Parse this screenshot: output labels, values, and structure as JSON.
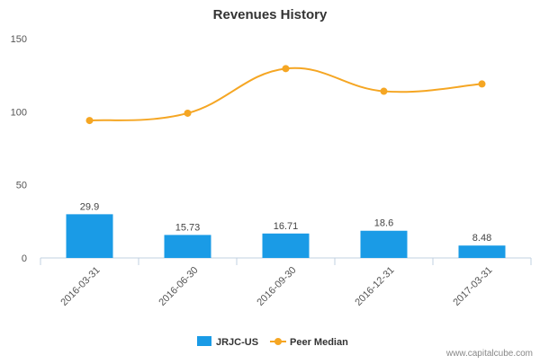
{
  "chart_data": {
    "type": "bar",
    "title": "Revenues History",
    "categories": [
      "2016-03-31",
      "2016-06-30",
      "2016-09-30",
      "2016-12-31",
      "2017-03-31"
    ],
    "ylim": [
      0,
      150
    ],
    "yticks": [
      0,
      50,
      100,
      150
    ],
    "grid": false,
    "legend_position": "bottom",
    "series": [
      {
        "name": "JRJC-US",
        "type": "bar",
        "color": "#1a9be6",
        "values": [
          29.9,
          15.73,
          16.71,
          18.6,
          8.48
        ],
        "data_labels": [
          "29.9",
          "15.73",
          "16.71",
          "18.6",
          "8.48"
        ]
      },
      {
        "name": "Peer Median",
        "type": "line",
        "smooth": true,
        "color": "#f5a623",
        "values": [
          94,
          99,
          129.5,
          114,
          119
        ]
      }
    ]
  },
  "watermark": "www.capitalcube.com"
}
